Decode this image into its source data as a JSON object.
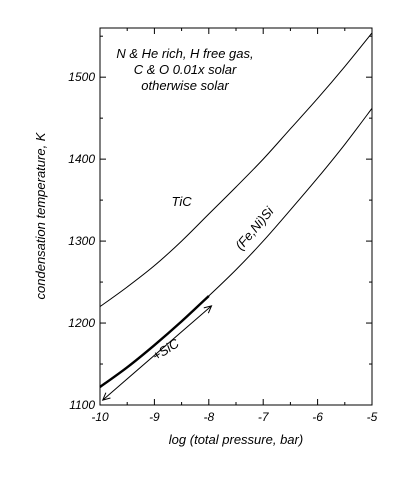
{
  "chart_data": {
    "type": "line",
    "title": "",
    "xlabel": "log (total pressure, bar)",
    "ylabel": "condensation temperature, K",
    "xlim": [
      -10,
      -5
    ],
    "ylim": [
      1100,
      1560
    ],
    "x_ticks": [
      -10,
      -9,
      -8,
      -7,
      -6,
      -5
    ],
    "x_tick_labels": [
      "-10",
      "-9",
      "-8",
      "-7",
      "-6",
      "-5"
    ],
    "y_ticks": [
      1100,
      1200,
      1300,
      1400,
      1500
    ],
    "y_tick_labels": [
      "1100",
      "1200",
      "1300",
      "1400",
      "1500"
    ],
    "grid": false,
    "legend": "none",
    "condition_note": [
      "N & He rich, H free gas,",
      "C & O 0.01x solar",
      "otherwise solar"
    ],
    "series": [
      {
        "name": "TiC",
        "x": [
          -10,
          -9.5,
          -9,
          -8.5,
          -8,
          -7.5,
          -7,
          -6.5,
          -6,
          -5.5,
          -5
        ],
        "y": [
          1220,
          1244,
          1270,
          1300,
          1333,
          1366,
          1400,
          1437,
          1474,
          1513,
          1554
        ]
      },
      {
        "name": "(Fe,Ni)Si",
        "x": [
          -10,
          -9.5,
          -9,
          -8.5,
          -8,
          -7.5,
          -7,
          -6.5,
          -6,
          -5.5,
          -5
        ],
        "y": [
          1122,
          1146,
          1173,
          1202,
          1233,
          1265,
          1300,
          1338,
          1377,
          1418,
          1462
        ]
      }
    ],
    "sic_segment": {
      "label": "+SiC",
      "x": [
        -10,
        -9.5,
        -9,
        -8.5,
        -8
      ],
      "y": [
        1122,
        1146,
        1173,
        1202,
        1233
      ]
    },
    "annotations": [
      {
        "text": "TiC",
        "x": -8.5,
        "y": 1343
      },
      {
        "text": "(Fe,Ni)Si",
        "x": -7.1,
        "y": 1312
      },
      {
        "text": "+SiC",
        "x": -8.75,
        "y": 1163
      }
    ]
  }
}
